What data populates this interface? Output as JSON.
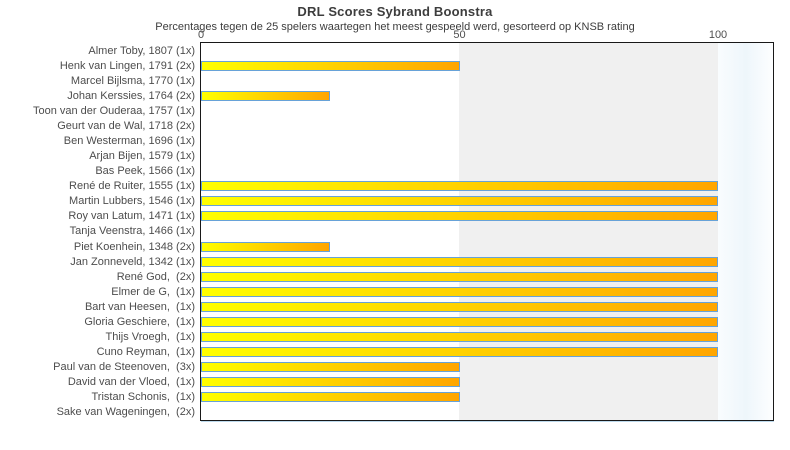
{
  "chart_data": {
    "type": "bar",
    "orientation": "horizontal",
    "title": "DRL Scores Sybrand Boonstra",
    "subtitle": "Percentages tegen de 25 spelers waartegen het meest gespeeld werd, gesorteerd op KNSB rating",
    "xlim": [
      0,
      100
    ],
    "x_ticks": [
      0,
      50,
      100
    ],
    "grid": "off",
    "legend": "none",
    "categories": [
      "Almer Toby, 1807 (1x)",
      "Henk van Lingen, 1791 (2x)",
      "Marcel Bijlsma, 1770 (1x)",
      "Johan Kerssies, 1764 (2x)",
      "Toon van der Ouderaa, 1757 (1x)",
      "Geurt van de Wal, 1718 (2x)",
      "Ben Westerman, 1696 (1x)",
      "Arjan Bijen, 1579 (1x)",
      "Bas Peek, 1566 (1x)",
      "René de Ruiter, 1555 (1x)",
      "Martin Lubbers, 1546 (1x)",
      "Roy van Latum, 1471 (1x)",
      "Tanja Veenstra, 1466 (1x)",
      "Piet Koenhein, 1348 (2x)",
      "Jan Zonneveld, 1342 (1x)",
      "René God,  (2x)",
      "Elmer de G,  (1x)",
      "Bart van Heesen,  (1x)",
      "Gloria Geschiere,  (1x)",
      "Thijs Vroegh,  (1x)",
      "Cuno Reyman,  (1x)",
      "Paul van de Steenoven,  (3x)",
      "David van der Vloed,  (1x)",
      "Tristan Schonis,  (1x)",
      "Sake van Wageningen,  (2x)"
    ],
    "values": [
      0,
      50,
      0,
      25,
      0,
      0,
      0,
      0,
      0,
      100,
      100,
      100,
      0,
      25,
      100,
      100,
      100,
      100,
      100,
      100,
      100,
      50,
      50,
      50,
      0
    ],
    "colors": {
      "bar_gradient_start": "#ffff00",
      "bar_gradient_end": "#ffa500",
      "bar_border": "#67a2d8",
      "band_50_100": "#f0f0f0",
      "plot_border": "#181818",
      "text": "#3d3d3d"
    }
  }
}
